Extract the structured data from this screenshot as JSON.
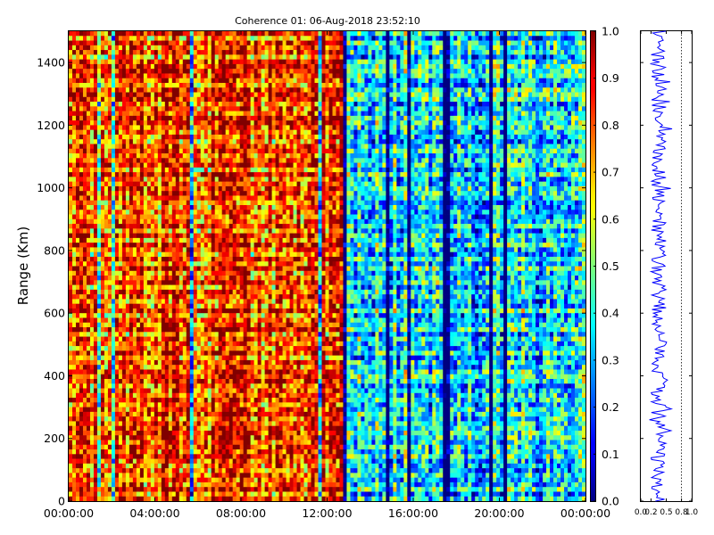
{
  "chart_data": [
    {
      "type": "heatmap",
      "title": "Coherence 01: 06-Aug-2018 23:52:10",
      "ylabel": "Range (Km)",
      "x_tick_labels": [
        "00:00:00",
        "04:00:00",
        "08:00:00",
        "12:00:00",
        "16:00:00",
        "20:00:00",
        "00:00:00"
      ],
      "xlim": [
        "00:00:00",
        "24:00:00"
      ],
      "y_ticks": [
        0,
        200,
        400,
        600,
        800,
        1000,
        1200,
        1400
      ],
      "ylim": [
        0,
        1500
      ],
      "value_range": [
        0.0,
        1.0
      ],
      "colormap": "jet",
      "colorbar_ticks": [
        "0.0",
        "0.1",
        "0.2",
        "0.3",
        "0.4",
        "0.5",
        "0.6",
        "0.7",
        "0.8",
        "0.9",
        "1.0"
      ],
      "regions": [
        {
          "time_start": "00:00:00",
          "time_end": "12:45:00",
          "typical_coherence": 0.8
        },
        {
          "time_start": "12:45:00",
          "time_end": "24:00:00",
          "typical_coherence": 0.35
        }
      ]
    },
    {
      "type": "line",
      "panel": "range-profile",
      "x_tick_labels": [
        "0.0",
        "0.2",
        "0.5",
        "0.8",
        "1.0"
      ],
      "xlim": [
        0,
        1
      ],
      "ylim": [
        0,
        1500
      ],
      "y_ticks": [
        0,
        200,
        400,
        600,
        800,
        1000,
        1200,
        1400
      ],
      "reference_line_x": 0.8,
      "typical_value": 0.35,
      "line_color": "#0000ff"
    }
  ]
}
